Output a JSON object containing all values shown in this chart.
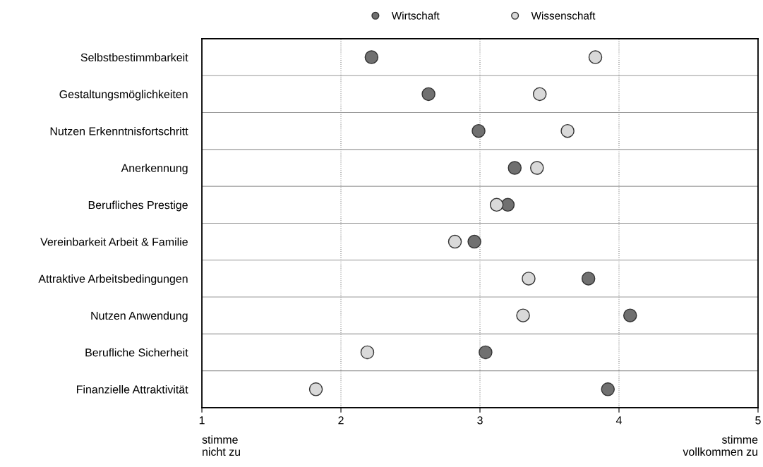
{
  "chart_data": {
    "type": "scatter",
    "orientation": "horizontal",
    "categories": [
      "Selbstbestimmbarkeit",
      "Gestaltungsmöglichkeiten",
      "Nutzen Erkenntnisfortschritt",
      "Anerkennung",
      "Berufliches Prestige",
      "Vereinbarkeit Arbeit & Familie",
      "Attraktive Arbeitsbedingungen",
      "Nutzen Anwendung",
      "Berufliche Sicherheit",
      "Finanzielle Attraktivität"
    ],
    "series": [
      {
        "name": "Wirtschaft",
        "color": "#707070",
        "values": [
          2.22,
          2.63,
          2.99,
          3.25,
          3.2,
          2.96,
          3.78,
          4.08,
          3.04,
          3.92
        ]
      },
      {
        "name": "Wissenschaft",
        "color": "#d9d9d9",
        "values": [
          3.83,
          3.43,
          3.63,
          3.41,
          3.12,
          2.82,
          3.35,
          3.31,
          2.19,
          1.82
        ]
      }
    ],
    "xlim": [
      1,
      5
    ],
    "xticks": [
      1,
      2,
      3,
      4,
      5
    ],
    "grid": true,
    "legend": "top",
    "marker": "circle",
    "annotations": [
      "stimme\nnicht zu",
      "stimme\nvollkommen zu"
    ]
  }
}
